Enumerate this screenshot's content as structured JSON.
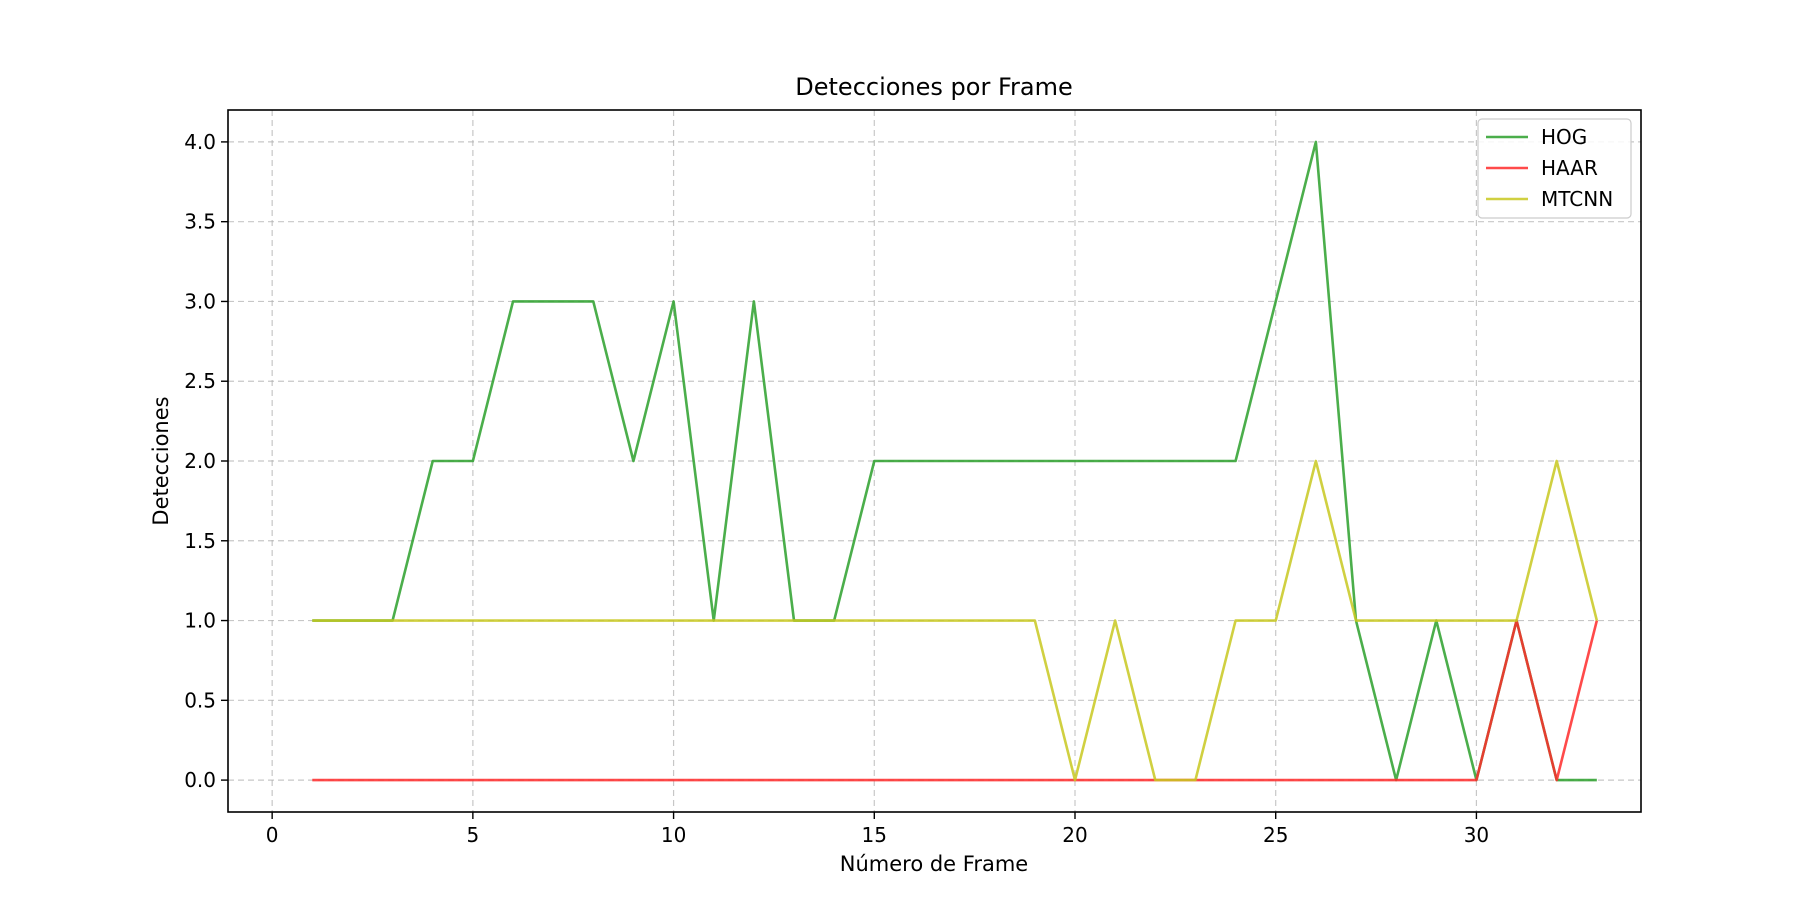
{
  "chart_data": {
    "type": "line",
    "title": "Detecciones por Frame",
    "xlabel": "Número de Frame",
    "ylabel": "Detecciones",
    "xlim": [
      -1.1,
      34.1
    ],
    "ylim": [
      -0.2,
      4.2
    ],
    "xticks": [
      0,
      5,
      10,
      15,
      20,
      25,
      30
    ],
    "yticks": [
      0.0,
      0.5,
      1.0,
      1.5,
      2.0,
      2.5,
      3.0,
      3.5,
      4.0
    ],
    "grid": true,
    "legend_position": "top-right",
    "x": [
      1,
      2,
      3,
      4,
      5,
      6,
      7,
      8,
      9,
      10,
      11,
      12,
      13,
      14,
      15,
      16,
      17,
      18,
      19,
      20,
      21,
      22,
      23,
      24,
      25,
      26,
      27,
      28,
      29,
      30,
      31,
      32,
      33
    ],
    "series": [
      {
        "name": "HOG",
        "color": "#2ca02c",
        "values": [
          1,
          1,
          1,
          2,
          2,
          3,
          3,
          3,
          2,
          3,
          1,
          3,
          1,
          1,
          2,
          2,
          2,
          2,
          2,
          2,
          2,
          2,
          2,
          2,
          3,
          4,
          1,
          0,
          1,
          0,
          1,
          0,
          0
        ]
      },
      {
        "name": "HAAR",
        "color": "#ff2a2a",
        "values": [
          0,
          0,
          0,
          0,
          0,
          0,
          0,
          0,
          0,
          0,
          0,
          0,
          0,
          0,
          0,
          0,
          0,
          0,
          0,
          0,
          0,
          0,
          0,
          0,
          0,
          0,
          0,
          0,
          0,
          0,
          1,
          0,
          1
        ]
      },
      {
        "name": "MTCNN",
        "color": "#c8c820",
        "values": [
          1,
          1,
          1,
          1,
          1,
          1,
          1,
          1,
          1,
          1,
          1,
          1,
          1,
          1,
          1,
          1,
          1,
          1,
          1,
          0,
          1,
          0,
          0,
          1,
          1,
          2,
          1,
          1,
          1,
          1,
          1,
          2,
          1
        ]
      }
    ]
  }
}
